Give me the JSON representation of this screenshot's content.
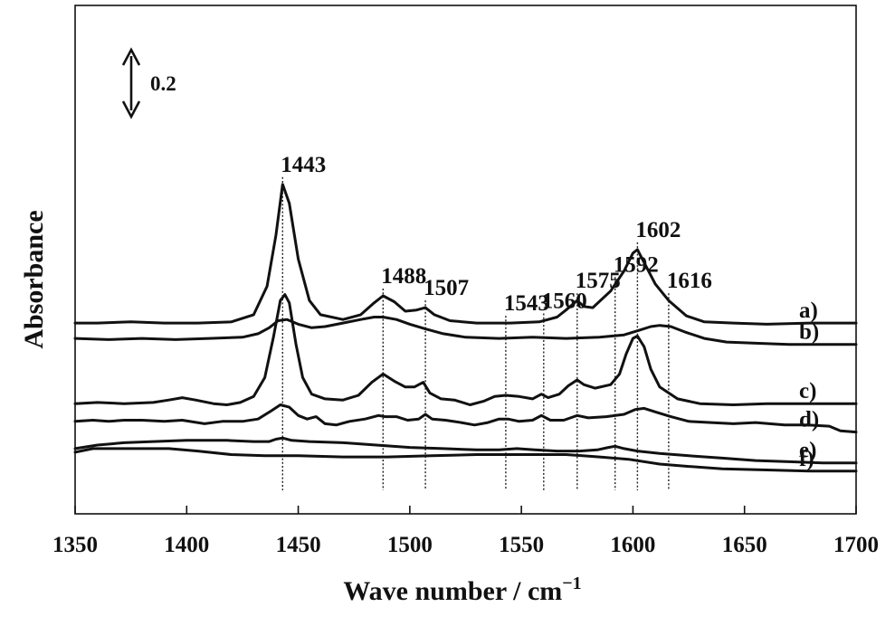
{
  "chart_data": {
    "type": "line",
    "title": "",
    "xlabel": "Wave number / cm",
    "xlabel_sup": "−1",
    "ylabel": "Absorbance",
    "xlim": [
      1350,
      1700
    ],
    "x_ticks": [
      1350,
      1400,
      1450,
      1500,
      1550,
      1600,
      1650,
      1700
    ],
    "y_ticks_shown": false,
    "grid": false,
    "scale_bar": {
      "label": "0.2",
      "value": 0.2
    },
    "peak_markers": [
      {
        "x": 1443,
        "label": "1443"
      },
      {
        "x": 1488,
        "label": "1488"
      },
      {
        "x": 1507,
        "label": "1507"
      },
      {
        "x": 1543,
        "label": "1543"
      },
      {
        "x": 1560,
        "label": "1560"
      },
      {
        "x": 1575,
        "label": "1575"
      },
      {
        "x": 1592,
        "label": "1592"
      },
      {
        "x": 1602,
        "label": "1602"
      },
      {
        "x": 1616,
        "label": "1616"
      }
    ],
    "series": [
      {
        "label": "a)",
        "points": [
          [
            1350,
            1.61
          ],
          [
            1360,
            1.61
          ],
          [
            1375,
            1.62
          ],
          [
            1390,
            1.61
          ],
          [
            1405,
            1.61
          ],
          [
            1420,
            1.62
          ],
          [
            1430,
            1.68
          ],
          [
            1436,
            1.92
          ],
          [
            1440,
            2.35
          ],
          [
            1443,
            2.78
          ],
          [
            1446,
            2.62
          ],
          [
            1450,
            2.15
          ],
          [
            1455,
            1.8
          ],
          [
            1460,
            1.68
          ],
          [
            1470,
            1.64
          ],
          [
            1478,
            1.68
          ],
          [
            1484,
            1.78
          ],
          [
            1488,
            1.84
          ],
          [
            1493,
            1.79
          ],
          [
            1498,
            1.71
          ],
          [
            1503,
            1.72
          ],
          [
            1507,
            1.74
          ],
          [
            1511,
            1.68
          ],
          [
            1518,
            1.63
          ],
          [
            1530,
            1.61
          ],
          [
            1545,
            1.61
          ],
          [
            1558,
            1.62
          ],
          [
            1566,
            1.66
          ],
          [
            1570,
            1.72
          ],
          [
            1575,
            1.8
          ],
          [
            1578,
            1.75
          ],
          [
            1582,
            1.74
          ],
          [
            1590,
            1.88
          ],
          [
            1596,
            2.05
          ],
          [
            1600,
            2.2
          ],
          [
            1602,
            2.23
          ],
          [
            1605,
            2.12
          ],
          [
            1610,
            1.94
          ],
          [
            1616,
            1.8
          ],
          [
            1624,
            1.67
          ],
          [
            1632,
            1.62
          ],
          [
            1645,
            1.61
          ],
          [
            1660,
            1.6
          ],
          [
            1680,
            1.61
          ],
          [
            1700,
            1.61
          ]
        ]
      },
      {
        "label": "b)",
        "points": [
          [
            1350,
            1.48
          ],
          [
            1365,
            1.47
          ],
          [
            1380,
            1.48
          ],
          [
            1395,
            1.47
          ],
          [
            1410,
            1.48
          ],
          [
            1425,
            1.49
          ],
          [
            1432,
            1.52
          ],
          [
            1437,
            1.57
          ],
          [
            1441,
            1.63
          ],
          [
            1445,
            1.64
          ],
          [
            1450,
            1.6
          ],
          [
            1456,
            1.57
          ],
          [
            1462,
            1.58
          ],
          [
            1470,
            1.61
          ],
          [
            1478,
            1.64
          ],
          [
            1484,
            1.66
          ],
          [
            1488,
            1.66
          ],
          [
            1494,
            1.64
          ],
          [
            1500,
            1.6
          ],
          [
            1507,
            1.56
          ],
          [
            1515,
            1.52
          ],
          [
            1525,
            1.49
          ],
          [
            1540,
            1.48
          ],
          [
            1555,
            1.49
          ],
          [
            1570,
            1.48
          ],
          [
            1585,
            1.49
          ],
          [
            1596,
            1.51
          ],
          [
            1603,
            1.55
          ],
          [
            1608,
            1.58
          ],
          [
            1612,
            1.59
          ],
          [
            1617,
            1.58
          ],
          [
            1624,
            1.53
          ],
          [
            1632,
            1.48
          ],
          [
            1642,
            1.45
          ],
          [
            1655,
            1.44
          ],
          [
            1670,
            1.43
          ],
          [
            1685,
            1.43
          ],
          [
            1700,
            1.43
          ]
        ]
      },
      {
        "label": "c)",
        "points": [
          [
            1350,
            0.93
          ],
          [
            1360,
            0.94
          ],
          [
            1372,
            0.93
          ],
          [
            1385,
            0.94
          ],
          [
            1392,
            0.96
          ],
          [
            1398,
            0.98
          ],
          [
            1404,
            0.96
          ],
          [
            1412,
            0.93
          ],
          [
            1418,
            0.92
          ],
          [
            1424,
            0.94
          ],
          [
            1430,
            0.99
          ],
          [
            1435,
            1.15
          ],
          [
            1439,
            1.5
          ],
          [
            1442,
            1.8
          ],
          [
            1444,
            1.85
          ],
          [
            1446,
            1.78
          ],
          [
            1449,
            1.43
          ],
          [
            1452,
            1.15
          ],
          [
            1456,
            1.01
          ],
          [
            1462,
            0.97
          ],
          [
            1470,
            0.96
          ],
          [
            1477,
            1.0
          ],
          [
            1483,
            1.11
          ],
          [
            1488,
            1.18
          ],
          [
            1493,
            1.12
          ],
          [
            1498,
            1.07
          ],
          [
            1502,
            1.07
          ],
          [
            1506,
            1.11
          ],
          [
            1509,
            1.02
          ],
          [
            1514,
            0.97
          ],
          [
            1520,
            0.96
          ],
          [
            1527,
            0.92
          ],
          [
            1533,
            0.95
          ],
          [
            1538,
            0.99
          ],
          [
            1543,
            1.0
          ],
          [
            1549,
            0.99
          ],
          [
            1555,
            0.97
          ],
          [
            1559,
            1.01
          ],
          [
            1562,
            0.98
          ],
          [
            1567,
            1.01
          ],
          [
            1571,
            1.08
          ],
          [
            1575,
            1.13
          ],
          [
            1578,
            1.09
          ],
          [
            1583,
            1.06
          ],
          [
            1590,
            1.09
          ],
          [
            1594,
            1.18
          ],
          [
            1597,
            1.35
          ],
          [
            1600,
            1.48
          ],
          [
            1602,
            1.5
          ],
          [
            1605,
            1.41
          ],
          [
            1608,
            1.22
          ],
          [
            1612,
            1.07
          ],
          [
            1620,
            0.97
          ],
          [
            1630,
            0.93
          ],
          [
            1645,
            0.92
          ],
          [
            1660,
            0.93
          ],
          [
            1680,
            0.93
          ],
          [
            1700,
            0.93
          ]
        ]
      },
      {
        "label": "d)",
        "points": [
          [
            1350,
            0.78
          ],
          [
            1358,
            0.79
          ],
          [
            1365,
            0.78
          ],
          [
            1372,
            0.79
          ],
          [
            1380,
            0.79
          ],
          [
            1390,
            0.78
          ],
          [
            1398,
            0.79
          ],
          [
            1408,
            0.76
          ],
          [
            1416,
            0.78
          ],
          [
            1425,
            0.78
          ],
          [
            1432,
            0.8
          ],
          [
            1438,
            0.87
          ],
          [
            1442,
            0.92
          ],
          [
            1446,
            0.9
          ],
          [
            1450,
            0.83
          ],
          [
            1454,
            0.8
          ],
          [
            1458,
            0.82
          ],
          [
            1462,
            0.76
          ],
          [
            1467,
            0.75
          ],
          [
            1473,
            0.78
          ],
          [
            1480,
            0.8
          ],
          [
            1486,
            0.83
          ],
          [
            1489,
            0.82
          ],
          [
            1494,
            0.82
          ],
          [
            1499,
            0.79
          ],
          [
            1504,
            0.8
          ],
          [
            1507,
            0.84
          ],
          [
            1510,
            0.8
          ],
          [
            1516,
            0.79
          ],
          [
            1523,
            0.77
          ],
          [
            1529,
            0.75
          ],
          [
            1535,
            0.77
          ],
          [
            1540,
            0.8
          ],
          [
            1544,
            0.8
          ],
          [
            1549,
            0.78
          ],
          [
            1555,
            0.79
          ],
          [
            1559,
            0.83
          ],
          [
            1563,
            0.79
          ],
          [
            1569,
            0.79
          ],
          [
            1575,
            0.83
          ],
          [
            1580,
            0.81
          ],
          [
            1588,
            0.82
          ],
          [
            1596,
            0.84
          ],
          [
            1601,
            0.88
          ],
          [
            1605,
            0.89
          ],
          [
            1610,
            0.86
          ],
          [
            1617,
            0.82
          ],
          [
            1625,
            0.78
          ],
          [
            1635,
            0.77
          ],
          [
            1645,
            0.76
          ],
          [
            1655,
            0.77
          ],
          [
            1668,
            0.75
          ],
          [
            1678,
            0.75
          ],
          [
            1688,
            0.74
          ],
          [
            1693,
            0.7
          ],
          [
            1700,
            0.69
          ]
        ]
      },
      {
        "label": "e)",
        "points": [
          [
            1350,
            0.55
          ],
          [
            1360,
            0.58
          ],
          [
            1372,
            0.6
          ],
          [
            1385,
            0.61
          ],
          [
            1400,
            0.62
          ],
          [
            1418,
            0.62
          ],
          [
            1430,
            0.61
          ],
          [
            1437,
            0.61
          ],
          [
            1440,
            0.63
          ],
          [
            1443,
            0.64
          ],
          [
            1447,
            0.62
          ],
          [
            1455,
            0.61
          ],
          [
            1470,
            0.6
          ],
          [
            1485,
            0.58
          ],
          [
            1500,
            0.56
          ],
          [
            1515,
            0.55
          ],
          [
            1530,
            0.54
          ],
          [
            1540,
            0.54
          ],
          [
            1548,
            0.55
          ],
          [
            1556,
            0.54
          ],
          [
            1566,
            0.53
          ],
          [
            1576,
            0.53
          ],
          [
            1584,
            0.54
          ],
          [
            1589,
            0.56
          ],
          [
            1592,
            0.57
          ],
          [
            1596,
            0.55
          ],
          [
            1602,
            0.53
          ],
          [
            1612,
            0.51
          ],
          [
            1625,
            0.49
          ],
          [
            1640,
            0.47
          ],
          [
            1655,
            0.45
          ],
          [
            1670,
            0.44
          ],
          [
            1685,
            0.43
          ],
          [
            1700,
            0.43
          ]
        ]
      },
      {
        "label": "f)",
        "points": [
          [
            1350,
            0.52
          ],
          [
            1358,
            0.55
          ],
          [
            1368,
            0.55
          ],
          [
            1380,
            0.55
          ],
          [
            1392,
            0.55
          ],
          [
            1405,
            0.53
          ],
          [
            1420,
            0.5
          ],
          [
            1435,
            0.49
          ],
          [
            1450,
            0.49
          ],
          [
            1470,
            0.48
          ],
          [
            1490,
            0.48
          ],
          [
            1510,
            0.49
          ],
          [
            1530,
            0.5
          ],
          [
            1550,
            0.5
          ],
          [
            1570,
            0.5
          ],
          [
            1585,
            0.48
          ],
          [
            1598,
            0.46
          ],
          [
            1612,
            0.42
          ],
          [
            1625,
            0.4
          ],
          [
            1640,
            0.38
          ],
          [
            1660,
            0.37
          ],
          [
            1680,
            0.36
          ],
          [
            1700,
            0.36
          ]
        ]
      }
    ]
  }
}
